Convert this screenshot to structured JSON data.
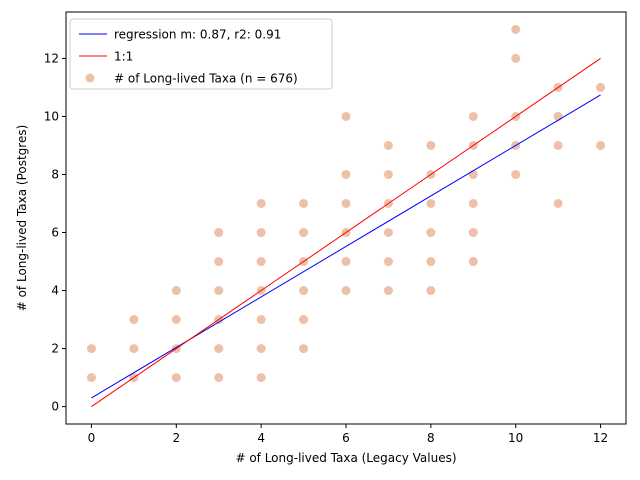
{
  "chart_data": {
    "type": "scatter",
    "xlabel": "# of Long-lived Taxa (Legacy Values)",
    "ylabel": "# of Long-lived Taxa (Postgres)",
    "xlim": [
      -0.6,
      12.6
    ],
    "ylim": [
      -0.6,
      13.6
    ],
    "xticks": [
      0,
      2,
      4,
      6,
      8,
      10,
      12
    ],
    "yticks": [
      0,
      2,
      4,
      6,
      8,
      10,
      12
    ],
    "grid": false,
    "legend_position": "top-left",
    "series": [
      {
        "name": "# of Long-lived Taxa (n = 676)",
        "kind": "scatter",
        "color": "#d9844f",
        "points": [
          [
            0,
            1
          ],
          [
            0,
            2
          ],
          [
            1,
            1
          ],
          [
            1,
            2
          ],
          [
            1,
            3
          ],
          [
            2,
            1
          ],
          [
            2,
            2
          ],
          [
            2,
            3
          ],
          [
            2,
            4
          ],
          [
            3,
            1
          ],
          [
            3,
            2
          ],
          [
            3,
            3
          ],
          [
            3,
            4
          ],
          [
            3,
            5
          ],
          [
            3,
            6
          ],
          [
            4,
            1
          ],
          [
            4,
            2
          ],
          [
            4,
            3
          ],
          [
            4,
            4
          ],
          [
            4,
            5
          ],
          [
            4,
            6
          ],
          [
            4,
            7
          ],
          [
            5,
            2
          ],
          [
            5,
            3
          ],
          [
            5,
            4
          ],
          [
            5,
            5
          ],
          [
            5,
            6
          ],
          [
            5,
            7
          ],
          [
            6,
            4
          ],
          [
            6,
            5
          ],
          [
            6,
            6
          ],
          [
            6,
            7
          ],
          [
            6,
            8
          ],
          [
            6,
            10
          ],
          [
            7,
            4
          ],
          [
            7,
            5
          ],
          [
            7,
            6
          ],
          [
            7,
            7
          ],
          [
            7,
            8
          ],
          [
            7,
            9
          ],
          [
            8,
            4
          ],
          [
            8,
            5
          ],
          [
            8,
            6
          ],
          [
            8,
            7
          ],
          [
            8,
            8
          ],
          [
            8,
            9
          ],
          [
            9,
            5
          ],
          [
            9,
            6
          ],
          [
            9,
            7
          ],
          [
            9,
            8
          ],
          [
            9,
            9
          ],
          [
            9,
            10
          ],
          [
            10,
            8
          ],
          [
            10,
            9
          ],
          [
            10,
            10
          ],
          [
            10,
            12
          ],
          [
            10,
            13
          ],
          [
            11,
            7
          ],
          [
            11,
            9
          ],
          [
            11,
            10
          ],
          [
            11,
            11
          ],
          [
            12,
            9
          ],
          [
            12,
            11
          ]
        ]
      },
      {
        "name": "regression m: 0.87, r2: 0.91",
        "kind": "line",
        "color": "#0000ff",
        "x": [
          0,
          12
        ],
        "y": [
          0.3,
          10.74
        ]
      },
      {
        "name": "1:1",
        "kind": "line",
        "color": "#ff0000",
        "x": [
          0,
          12
        ],
        "y": [
          0,
          12
        ]
      }
    ]
  }
}
